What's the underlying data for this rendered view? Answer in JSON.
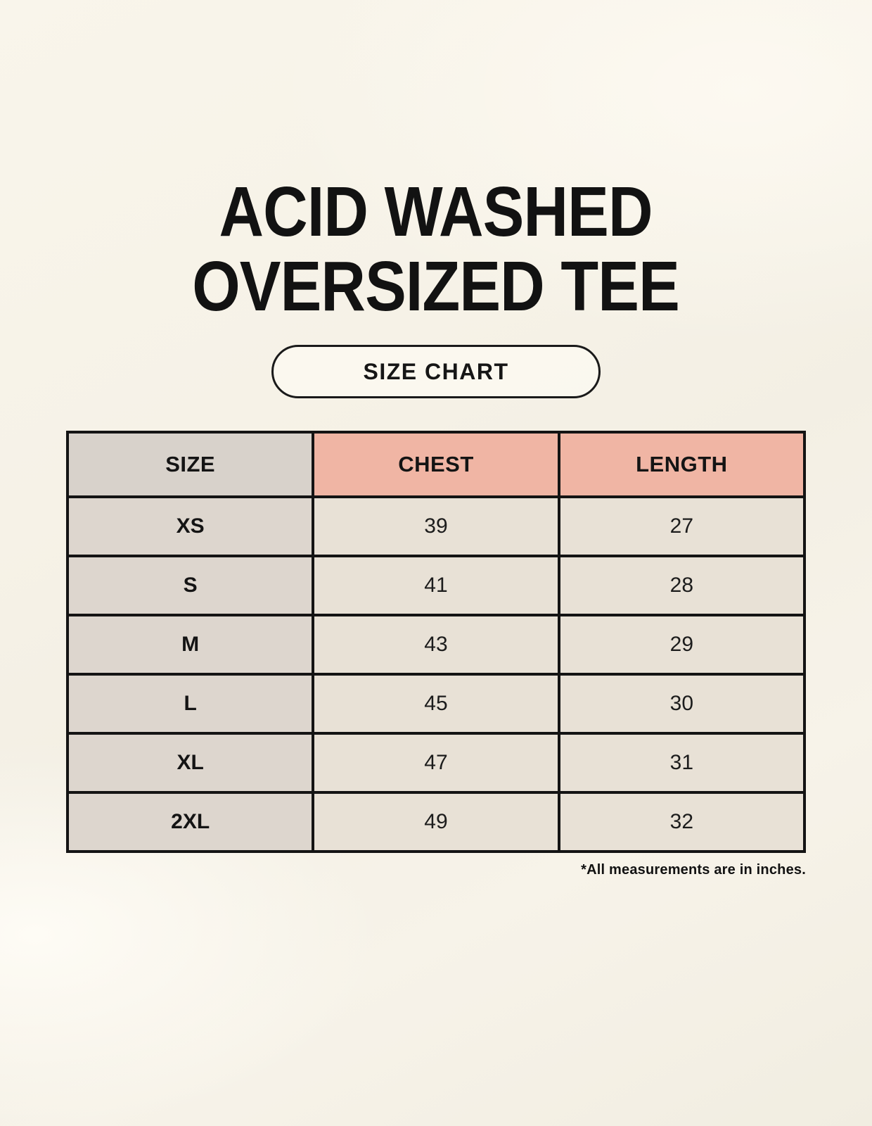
{
  "header": {
    "title_line1": "ACID WASHED",
    "title_line2": "OVERSIZED TEE",
    "badge_label": "SIZE CHART"
  },
  "chart_data": {
    "type": "table",
    "title": "ACID WASHED OVERSIZED TEE — SIZE CHART",
    "columns": [
      "SIZE",
      "CHEST",
      "LENGTH"
    ],
    "rows": [
      [
        "XS",
        "39",
        "27"
      ],
      [
        "S",
        "41",
        "28"
      ],
      [
        "M",
        "43",
        "29"
      ],
      [
        "L",
        "45",
        "30"
      ],
      [
        "XL",
        "47",
        "31"
      ],
      [
        "2XL",
        "49",
        "32"
      ]
    ],
    "units": "inches"
  },
  "footer": {
    "note": "*All measurements are in inches."
  },
  "colors": {
    "bg": "#f7f3e8",
    "accent": "#f0b5a4",
    "neutral": "#d8d2cb",
    "size_col": "#ddd6ce",
    "cell": "#e8e1d6",
    "border": "#141414",
    "ink": "#141414"
  }
}
